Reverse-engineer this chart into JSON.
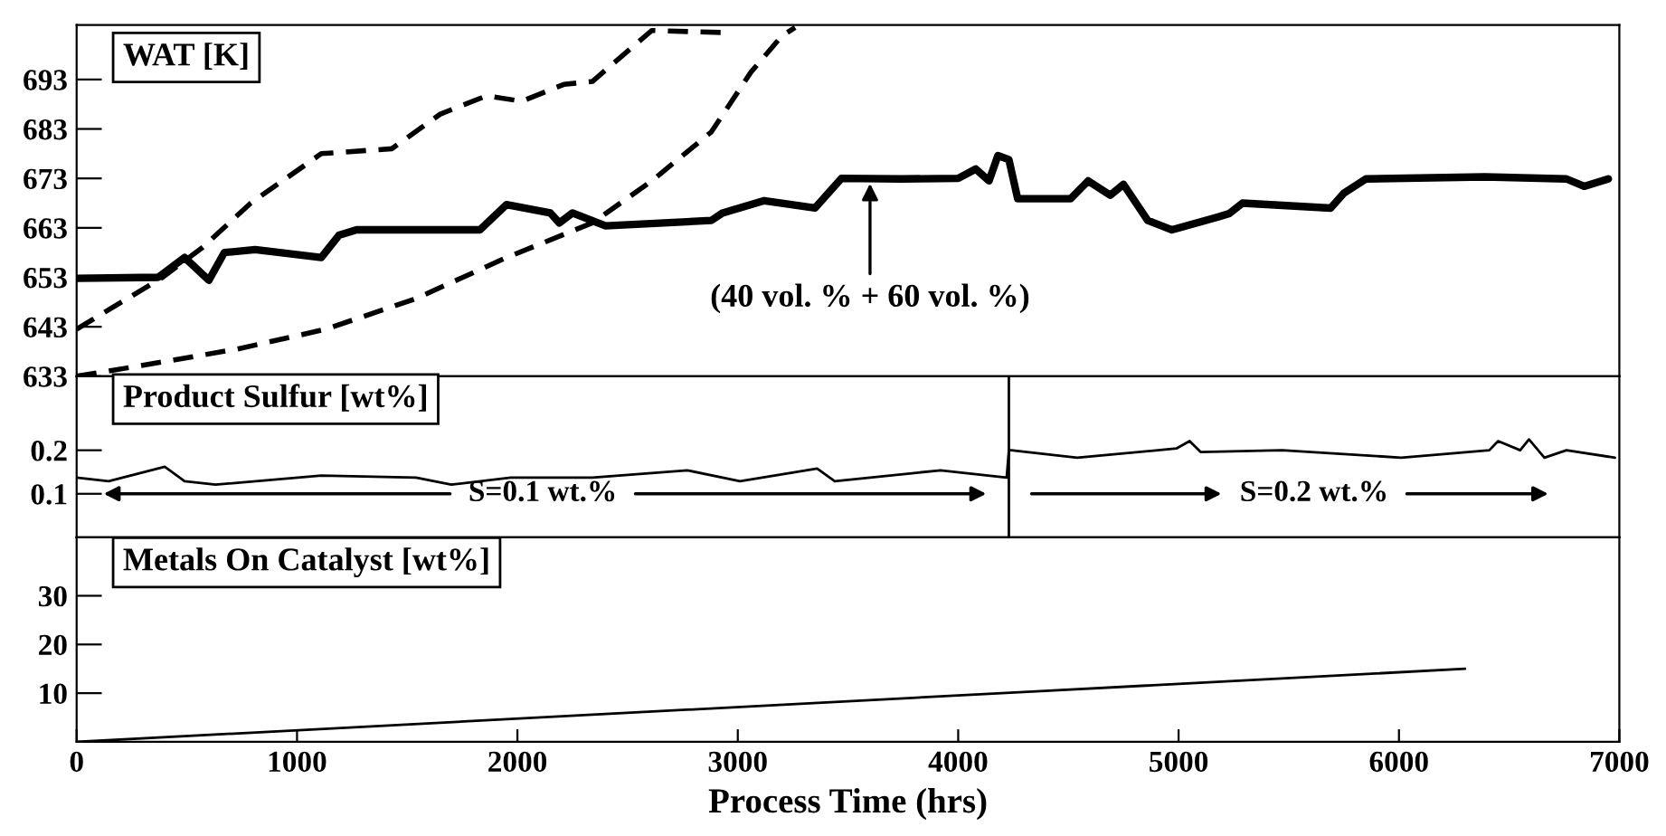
{
  "chart_data": [
    {
      "type": "line",
      "title": "WAT [K]",
      "xlim": [
        0,
        7000
      ],
      "ylim": [
        633,
        704
      ],
      "yticks": [
        633,
        643,
        653,
        663,
        673,
        683,
        693
      ],
      "tick_labels": "y",
      "grid": false,
      "legend": false,
      "series": [
        {
          "color": "#000000",
          "line_style": "solid",
          "x": [
            0,
            370,
            490,
            600,
            670,
            810,
            1110,
            1190,
            1270,
            1830,
            1950,
            2150,
            2190,
            2250,
            2400,
            2880,
            2930,
            3120,
            3200,
            3350,
            3470,
            3740,
            4000,
            4080,
            4140,
            4180,
            4230,
            4270,
            4510,
            4590,
            4690,
            4750,
            4860,
            4970,
            5180,
            5230,
            5290,
            5690,
            5750,
            5850,
            6390,
            6760,
            6840,
            6950
          ],
          "values": [
            652.8,
            653,
            657,
            652.4,
            658,
            658.6,
            657,
            661.5,
            662.6,
            662.6,
            667.7,
            666,
            664,
            666,
            663.4,
            664.5,
            666,
            668.5,
            668,
            667,
            673,
            672.9,
            673,
            674.9,
            672.5,
            677.6,
            676.8,
            668.9,
            668.9,
            672.5,
            669.6,
            671.8,
            664.5,
            662.6,
            665.2,
            665.9,
            668,
            667,
            670,
            672.9,
            673.3,
            672.9,
            671.4,
            672.9
          ]
        },
        {
          "color": "#000000",
          "line_style": "dashed",
          "x": [
            0,
            390,
            570,
            790,
            1110,
            1430,
            1650,
            1860,
            2020,
            2210,
            2340,
            2610,
            2930
          ],
          "values": [
            642.5,
            653,
            659,
            668,
            678,
            679,
            686,
            689.7,
            688.6,
            692,
            692.6,
            702.9,
            702.5
          ]
        },
        {
          "color": "#000000",
          "line_style": "dashed",
          "x": [
            0,
            300,
            730,
            1130,
            1540,
            1940,
            2340,
            2610,
            2880,
            3060,
            3200,
            3260
          ],
          "values": [
            633,
            635.2,
            638.5,
            642.5,
            648.7,
            656.8,
            664,
            672.5,
            682.4,
            694.5,
            701.8,
            703.5
          ]
        }
      ],
      "annotations": [
        {
          "text": "(40 vol. % + 60 vol. %)",
          "x": 3600,
          "y": 673
        }
      ]
    },
    {
      "type": "line",
      "title": "Product Sulfur [wt%]",
      "xlim": [
        0,
        7000
      ],
      "ylim": [
        0,
        0.37
      ],
      "yticks": [
        0.1,
        0.2
      ],
      "tick_labels": "y",
      "grid": false,
      "legend": false,
      "series": [
        {
          "color": "#000000",
          "line_style": "solid",
          "x": [
            0,
            145,
            400,
            490,
            630,
            1110,
            1540,
            1700,
            1970,
            2340,
            2770,
            3010,
            3360,
            3440,
            3920,
            4220,
            4230,
            4240,
            4540,
            4990,
            5050,
            5100,
            5470,
            6010,
            6410,
            6450,
            6550,
            6590,
            6660,
            6760,
            6980
          ],
          "values": [
            0.137,
            0.129,
            0.162,
            0.129,
            0.121,
            0.142,
            0.137,
            0.121,
            0.137,
            0.137,
            0.154,
            0.129,
            0.158,
            0.129,
            0.154,
            0.137,
            0.2,
            0.2,
            0.183,
            0.204,
            0.221,
            0.196,
            0.2,
            0.183,
            0.2,
            0.221,
            0.2,
            0.225,
            0.183,
            0.2,
            0.183
          ]
        }
      ],
      "ref_lines": [
        {
          "axis": "x",
          "value": 4230,
          "color": "#000000",
          "line_style": "solid"
        }
      ],
      "annotations": [
        "S=0.1 wt.%",
        "S=0.2 wt.%"
      ]
    },
    {
      "type": "line",
      "title": "Metals On Catalyst [wt%]",
      "xlabel": "Process Time (hrs)",
      "xlim": [
        0,
        7000
      ],
      "xticks": [
        0,
        1000,
        2000,
        3000,
        4000,
        5000,
        6000,
        7000
      ],
      "ylim": [
        0,
        42
      ],
      "yticks": [
        10,
        20,
        30
      ],
      "grid": false,
      "legend": false,
      "series": [
        {
          "color": "#000000",
          "line_style": "solid",
          "x": [
            0,
            6300
          ],
          "values": [
            0,
            15
          ]
        }
      ]
    }
  ]
}
